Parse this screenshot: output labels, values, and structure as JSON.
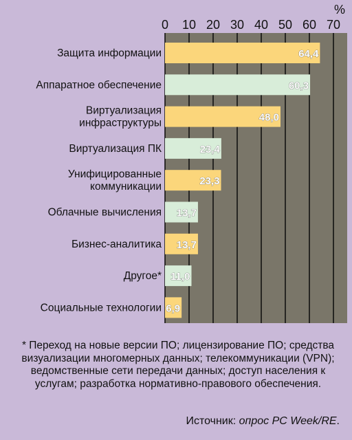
{
  "chart_data": {
    "type": "bar",
    "orientation": "horizontal",
    "unit": "%",
    "xlim": [
      0,
      70
    ],
    "x_ticks": [
      "0",
      "10",
      "20",
      "30",
      "40",
      "50",
      "60",
      "70"
    ],
    "categories": [
      [
        "Защита информации"
      ],
      [
        "Аппаратное обеспечение"
      ],
      [
        "Виртуализация",
        "инфраструктуры"
      ],
      [
        "Виртуализация ПК"
      ],
      [
        "Унифицированные",
        "коммуникации"
      ],
      [
        "Облачные вычисления"
      ],
      [
        "Бизнес-аналитика"
      ],
      [
        "Другое*"
      ],
      [
        "Социальные технологии"
      ]
    ],
    "values": [
      64.4,
      60.3,
      48.0,
      23.4,
      23.3,
      13.7,
      13.7,
      11.0,
      6.9
    ],
    "value_labels": [
      "64,4",
      "60,3",
      "48,0",
      "23,4",
      "23,3",
      "13,7",
      "13,7",
      "11,0",
      "6,9"
    ],
    "bar_colors": [
      "#fbd67b",
      "#d8edd9",
      "#fbd67b",
      "#d8edd9",
      "#fbd67b",
      "#d8edd9",
      "#fbd67b",
      "#d8edd9",
      "#fbd67b"
    ],
    "grid": true,
    "plot_background": "#7a7669",
    "grid_color": "#111111"
  },
  "footnote": "* Переход на новые версии ПО; лицензирование ПО; средства визуализации многомерных данных; телекоммуникации (VPN); ведомственные сети передачи данных; доступ населения к услугам; разработка нормативно-правового обеспечения.",
  "source": {
    "prefix": "Источник: ",
    "name": "опрос PC Week/RE",
    "suffix": "."
  },
  "page_background": "#c9b9d8"
}
